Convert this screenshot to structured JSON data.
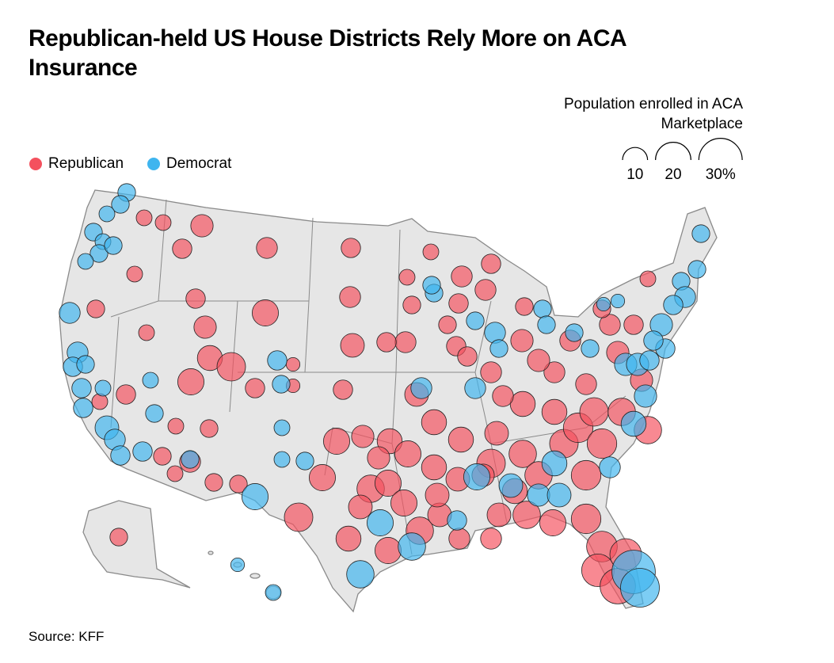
{
  "chart_data": {
    "type": "bubble-map",
    "title": "Republican-held US House Districts Rely More on ACA Insurance",
    "size_title": "Population enrolled in ACA Marketplace",
    "size_ticks": [
      10,
      20,
      {
        "value": 30,
        "label": "30%"
      }
    ],
    "source": "Source: KFF",
    "series": [
      {
        "name": "Republican",
        "color": "#f4515e",
        "values": [
          4,
          4,
          6,
          4,
          5,
          4,
          6,
          8,
          10,
          13,
          11,
          8,
          7,
          6,
          11,
          7,
          9,
          6,
          6,
          3,
          3,
          6,
          4,
          4,
          5,
          5,
          7,
          5,
          4,
          5,
          13,
          11,
          11,
          8,
          10,
          11,
          8,
          12,
          11,
          9,
          11,
          10,
          11,
          12,
          9,
          7,
          6,
          5,
          5,
          6,
          4,
          4,
          7,
          6,
          7,
          6,
          5,
          8,
          7,
          6,
          9,
          10,
          10,
          10,
          9,
          9,
          13,
          9,
          12,
          12,
          10,
          9,
          12,
          11,
          14,
          13,
          14,
          14,
          13,
          12,
          12,
          14,
          15,
          17,
          20,
          16,
          10,
          10,
          7,
          7,
          7,
          8,
          7,
          8,
          8,
          6,
          7,
          5,
          4,
          8,
          7,
          7,
          5
        ]
      },
      {
        "name": "Democrat",
        "color": "#3fb5ef",
        "values": [
          5,
          5,
          4,
          5,
          4,
          5,
          5,
          4,
          7,
          7,
          6,
          5,
          6,
          4,
          6,
          9,
          7,
          6,
          6,
          4,
          5,
          5,
          6,
          5,
          4,
          4,
          11,
          5,
          11,
          9,
          8,
          9,
          10,
          6,
          7,
          7,
          5,
          7,
          5,
          5,
          5,
          5,
          5,
          5,
          5,
          8,
          8,
          8,
          10,
          7,
          30,
          24,
          12,
          11,
          12,
          5,
          5,
          5,
          7,
          6,
          8,
          6,
          6,
          6,
          3,
          4,
          3,
          3
        ]
      }
    ]
  }
}
